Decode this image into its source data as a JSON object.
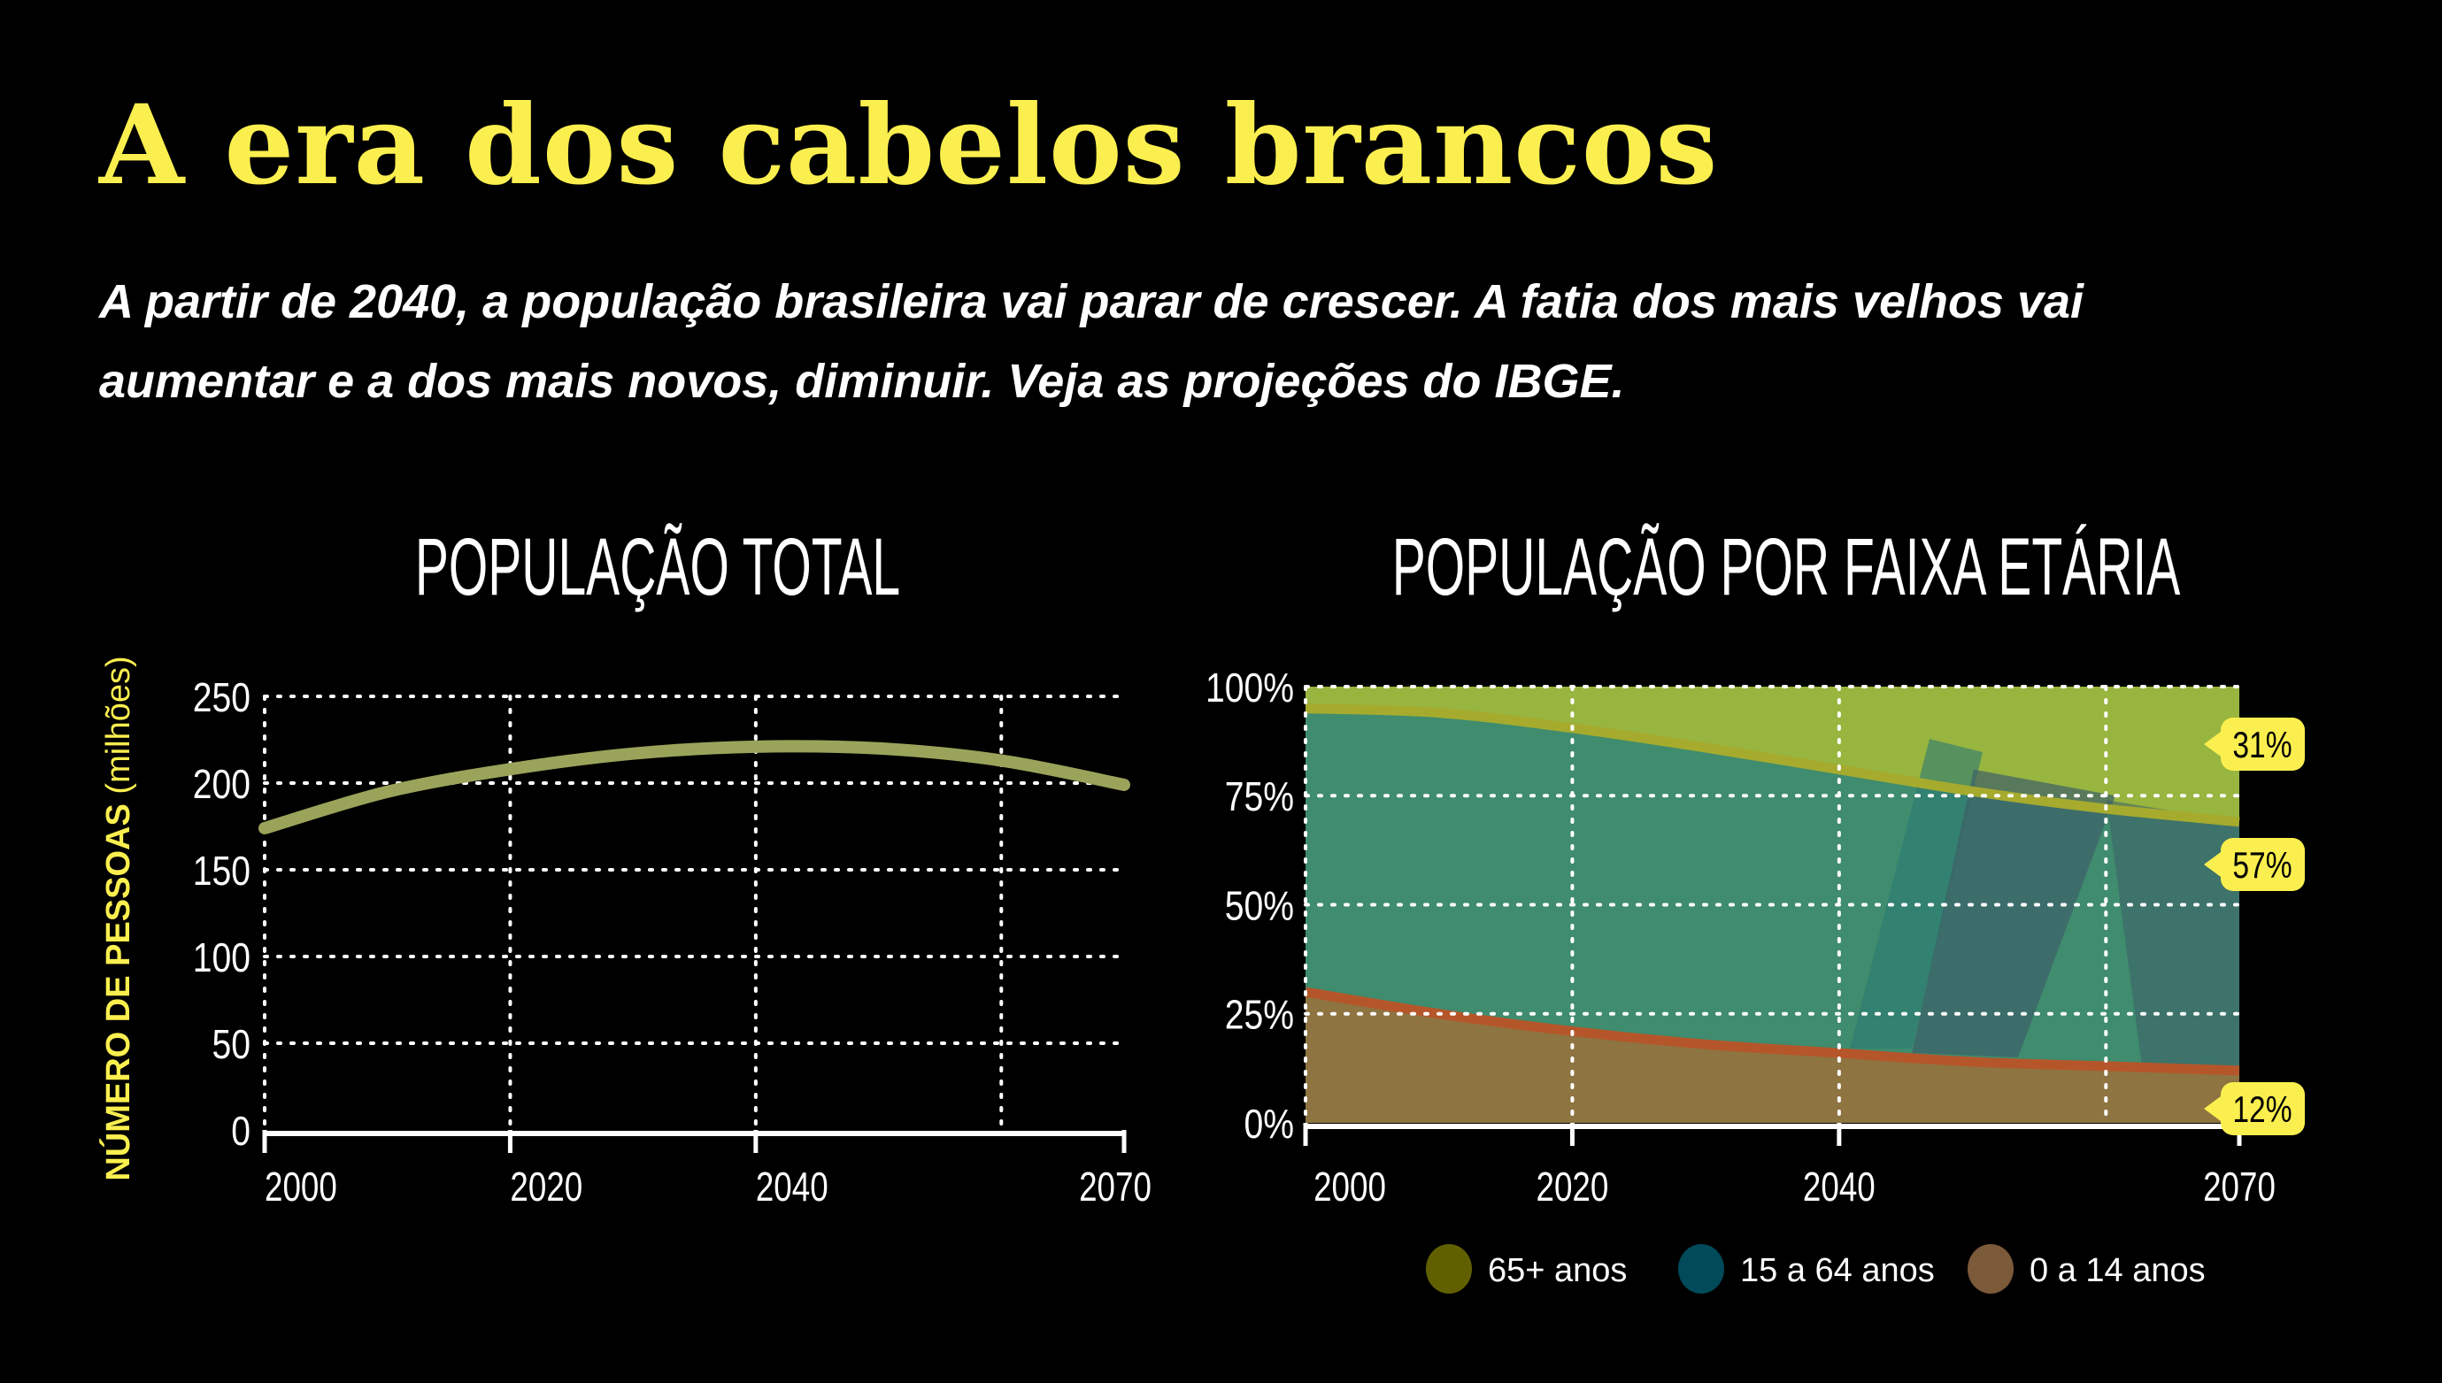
{
  "title": "A era dos cabelos brancos",
  "subtitle": "A partir de 2040, a população brasileira vai parar de crescer. A fatia dos mais velhos vai aumentar e a dos mais novos, diminuir. Veja as projeções do IBGE.",
  "colors": {
    "title": "#fbef4f",
    "badge": "#fbef4f",
    "line_total": "#9aa35a",
    "age_65": "#606000",
    "age_15_64": "#014a5a",
    "age_0_14": "#7b5a3a"
  },
  "chart_data": [
    {
      "type": "line",
      "title": "POPULAÇÃO TOTAL",
      "ylabel_bold": "NÚMERO DE PESSOAS",
      "ylabel_unit": "(milhões)",
      "x": [
        2000,
        2010,
        2020,
        2030,
        2040,
        2050,
        2060,
        2070
      ],
      "values": [
        174,
        195,
        208,
        217,
        221,
        220,
        213,
        199
      ],
      "xlim": [
        2000,
        2070
      ],
      "ylim": [
        0,
        250
      ],
      "xticks": [
        "2000",
        "2020",
        "2040",
        "2070"
      ],
      "yticks": [
        "0",
        "50",
        "100",
        "150",
        "200",
        "250"
      ],
      "grid": true
    },
    {
      "type": "area",
      "stacked": true,
      "title": "POPULAÇÃO POR FAIXA ETÁRIA",
      "x": [
        2000,
        2010,
        2020,
        2030,
        2040,
        2050,
        2060,
        2070
      ],
      "series": [
        {
          "name": "0 a 14 anos",
          "values": [
            30,
            25,
            21,
            18,
            16,
            14,
            13,
            12
          ]
        },
        {
          "name": "15 a 64 anos",
          "values": [
            65,
            69,
            69.5,
            68,
            65,
            62,
            59,
            57
          ]
        },
        {
          "name": "65+ anos",
          "values": [
            5,
            6,
            9.5,
            14,
            19,
            24,
            28,
            31
          ]
        }
      ],
      "xlim": [
        2000,
        2070
      ],
      "ylim": [
        0,
        100
      ],
      "xticks": [
        "2000",
        "2020",
        "2040",
        "2070"
      ],
      "yticks": [
        "0%",
        "25%",
        "50%",
        "75%",
        "100%"
      ],
      "end_labels": [
        "31%",
        "57%",
        "12%"
      ],
      "legend": [
        "65+ anos",
        "15 a 64 anos",
        "0 a 14 anos"
      ],
      "legend_position": "bottom",
      "grid": true
    }
  ]
}
